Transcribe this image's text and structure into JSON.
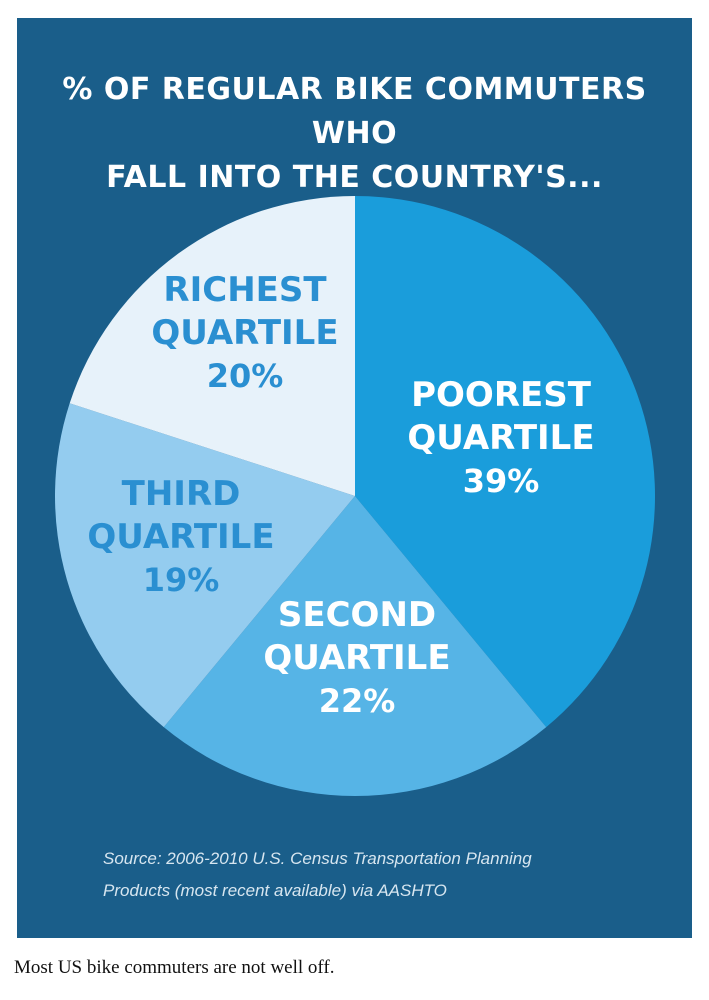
{
  "chart_data": {
    "type": "pie",
    "title_lines": [
      "% OF REGULAR BIKE COMMUTERS WHO",
      "FALL INTO THE COUNTRY'S..."
    ],
    "slices": [
      {
        "name_lines": [
          "POOREST",
          "QUARTILE"
        ],
        "value": 39,
        "value_label": "39%",
        "color": "#1a9ddb",
        "label_color": "#ffffff"
      },
      {
        "name_lines": [
          "SECOND",
          "QUARTILE"
        ],
        "value": 22,
        "value_label": "22%",
        "color": "#56b4e6",
        "label_color": "#ffffff"
      },
      {
        "name_lines": [
          "THIRD",
          "QUARTILE"
        ],
        "value": 19,
        "value_label": "19%",
        "color": "#94ccef",
        "label_color": "#2a8fd1"
      },
      {
        "name_lines": [
          "RICHEST",
          "QUARTILE"
        ],
        "value": 20,
        "value_label": "20%",
        "color": "#e7f2fa",
        "label_color": "#2a8fd1"
      }
    ],
    "start": "12 o'clock",
    "direction": "clockwise",
    "legend": "none"
  },
  "source": {
    "line1": "Source: 2006-2010 U.S. Census Transportation Planning",
    "line2": "Products (most recent available) via AASHTO"
  },
  "caption": "Most US bike commuters are not well off.",
  "colors": {
    "panel": "#1a5e8a",
    "title": "#ffffff",
    "source": "#d7e6f0"
  }
}
